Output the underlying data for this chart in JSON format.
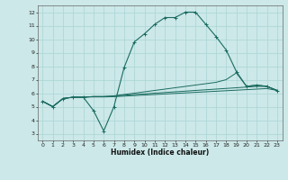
{
  "title": "",
  "xlabel": "Humidex (Indice chaleur)",
  "bg_color": "#cce8e8",
  "line_color": "#1a6b60",
  "grid_color": "#aad4d4",
  "xlim": [
    -0.5,
    23.5
  ],
  "ylim": [
    2.5,
    12.5
  ],
  "xticks": [
    0,
    1,
    2,
    3,
    4,
    5,
    6,
    7,
    8,
    9,
    10,
    11,
    12,
    13,
    14,
    15,
    16,
    17,
    18,
    19,
    20,
    21,
    22,
    23
  ],
  "yticks": [
    3,
    4,
    5,
    6,
    7,
    8,
    9,
    10,
    11,
    12
  ],
  "line1_x": [
    0,
    1,
    2,
    3,
    4,
    5,
    6,
    7,
    8,
    9,
    10,
    11,
    12,
    13,
    14,
    15,
    16,
    17,
    18,
    19,
    20,
    21,
    22,
    23
  ],
  "line1_y": [
    5.4,
    5.0,
    5.6,
    5.7,
    5.7,
    4.7,
    3.2,
    5.0,
    7.9,
    9.8,
    10.4,
    11.1,
    11.6,
    11.6,
    12.0,
    12.0,
    11.1,
    10.2,
    9.2,
    7.6,
    6.5,
    6.6,
    6.5,
    6.2
  ],
  "line2_x": [
    0,
    1,
    2,
    3,
    4,
    5,
    6,
    7,
    8,
    9,
    10,
    11,
    12,
    13,
    14,
    15,
    16,
    17,
    18,
    19,
    20,
    21,
    22,
    23
  ],
  "line2_y": [
    5.4,
    5.0,
    5.6,
    5.7,
    5.7,
    5.75,
    5.75,
    5.8,
    5.9,
    6.0,
    6.1,
    6.2,
    6.3,
    6.4,
    6.5,
    6.6,
    6.7,
    6.8,
    7.0,
    7.5,
    6.5,
    6.6,
    6.5,
    6.2
  ],
  "line3_x": [
    0,
    1,
    2,
    3,
    4,
    5,
    6,
    7,
    8,
    9,
    10,
    11,
    12,
    13,
    14,
    15,
    16,
    17,
    18,
    19,
    20,
    21,
    22,
    23
  ],
  "line3_y": [
    5.4,
    5.0,
    5.6,
    5.7,
    5.7,
    5.75,
    5.75,
    5.78,
    5.85,
    5.9,
    5.95,
    6.0,
    6.05,
    6.1,
    6.15,
    6.2,
    6.25,
    6.3,
    6.35,
    6.4,
    6.45,
    6.5,
    6.5,
    6.2
  ],
  "line4_x": [
    0,
    1,
    2,
    3,
    4,
    5,
    6,
    7,
    8,
    9,
    10,
    11,
    12,
    13,
    14,
    15,
    16,
    17,
    18,
    19,
    20,
    21,
    22,
    23
  ],
  "line4_y": [
    5.4,
    5.0,
    5.6,
    5.7,
    5.7,
    5.72,
    5.72,
    5.74,
    5.78,
    5.82,
    5.86,
    5.9,
    5.94,
    5.98,
    6.02,
    6.06,
    6.1,
    6.14,
    6.18,
    6.22,
    6.26,
    6.3,
    6.34,
    6.2
  ]
}
